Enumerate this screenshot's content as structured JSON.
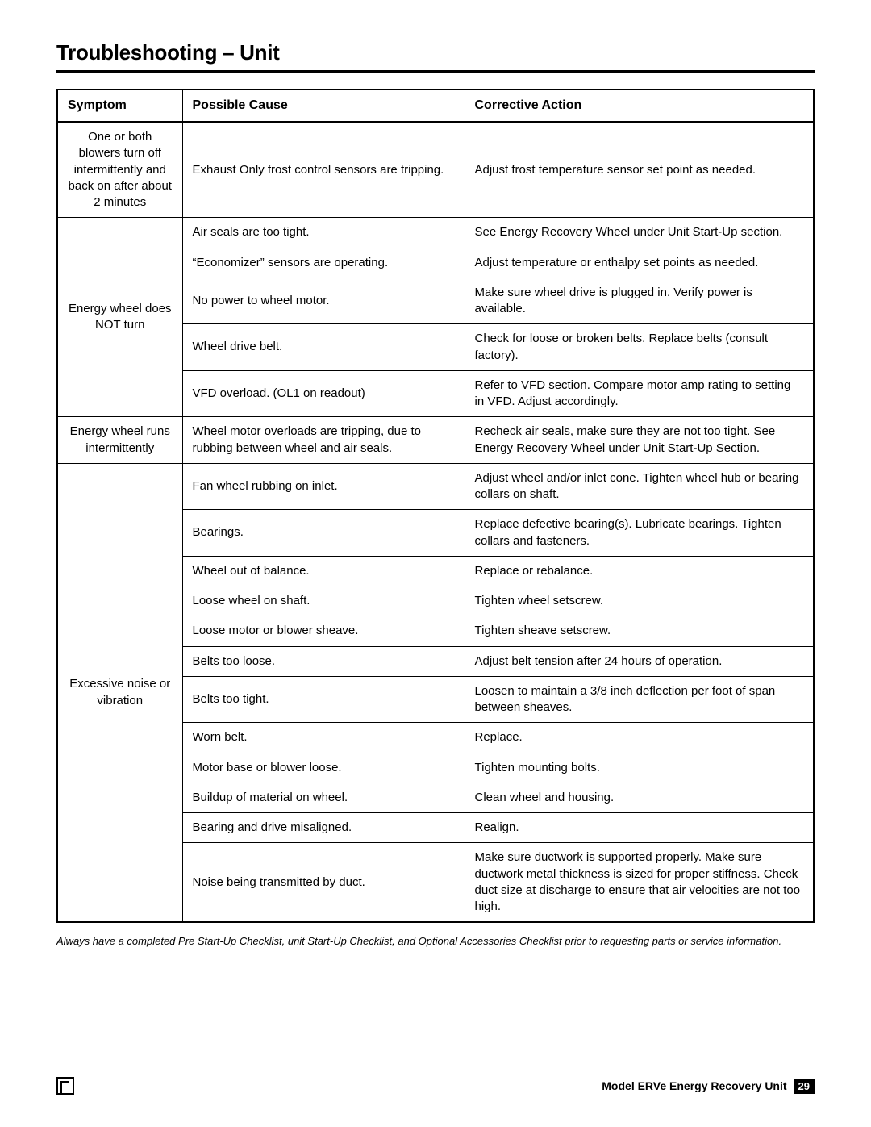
{
  "title": "Troubleshooting – Unit",
  "columns": [
    "Symptom",
    "Possible Cause",
    "Corrective Action"
  ],
  "groups": [
    {
      "symptom": "One or both blowers turn off intermittently and back on after about 2 minutes",
      "rows": [
        {
          "cause": "Exhaust Only frost control sensors are tripping.",
          "action": "Adjust frost temperature sensor set point as needed."
        }
      ]
    },
    {
      "symptom": "Energy wheel does NOT turn",
      "rows": [
        {
          "cause": "Air seals are too tight.",
          "action": "See Energy Recovery Wheel under Unit Start-Up section."
        },
        {
          "cause": "“Economizer” sensors are operating.",
          "action": "Adjust temperature or enthalpy set points as needed."
        },
        {
          "cause": "No power to wheel motor.",
          "action": "Make sure wheel drive is plugged in. Verify power is available."
        },
        {
          "cause": "Wheel drive belt.",
          "action": "Check for loose or broken belts. Replace belts (consult factory)."
        },
        {
          "cause": "VFD overload.  (OL1 on readout)",
          "action": "Refer to VFD section. Compare motor amp rating to setting in VFD. Adjust accordingly."
        }
      ]
    },
    {
      "symptom": "Energy wheel runs intermittently",
      "rows": [
        {
          "cause": "Wheel motor overloads are tripping, due to rubbing between wheel and air seals.",
          "action": "Recheck air seals, make sure they are not too tight. See Energy Recovery Wheel under Unit Start-Up Section."
        }
      ]
    },
    {
      "symptom": "Excessive noise or vibration",
      "rows": [
        {
          "cause": "Fan wheel rubbing on inlet.",
          "action": "Adjust wheel and/or inlet cone. Tighten wheel hub or bearing collars on shaft."
        },
        {
          "cause": "Bearings.",
          "action": "Replace defective bearing(s). Lubricate bearings. Tighten collars and fasteners."
        },
        {
          "cause": "Wheel out of balance.",
          "action": "Replace or rebalance."
        },
        {
          "cause": "Loose wheel on shaft.",
          "action": "Tighten wheel setscrew."
        },
        {
          "cause": "Loose motor or blower sheave.",
          "action": "Tighten sheave setscrew."
        },
        {
          "cause": "Belts too loose.",
          "action": "Adjust belt tension after 24 hours of operation."
        },
        {
          "cause": "Belts too tight.",
          "action": "Loosen to maintain a 3/8 inch deflection per foot of span between sheaves."
        },
        {
          "cause": "Worn belt.",
          "action": "Replace."
        },
        {
          "cause": "Motor base or blower loose.",
          "action": "Tighten mounting bolts."
        },
        {
          "cause": "Buildup of material on wheel.",
          "action": "Clean wheel and housing."
        },
        {
          "cause": "Bearing and drive misaligned.",
          "action": "Realign."
        },
        {
          "cause": "Noise being transmitted by duct.",
          "action": "Make sure ductwork is supported properly. Make sure ductwork metal thickness is sized for proper stiffness. Check duct size at discharge to ensure that air velocities are not too high."
        }
      ]
    }
  ],
  "footnote": "Always have a completed Pre Start-Up Checklist, unit Start-Up Checklist, and Optional Accessories Checklist prior to requesting parts or service information.",
  "footer": {
    "model_text": "Model ERVe Energy Recovery Unit",
    "page_number": "29"
  }
}
